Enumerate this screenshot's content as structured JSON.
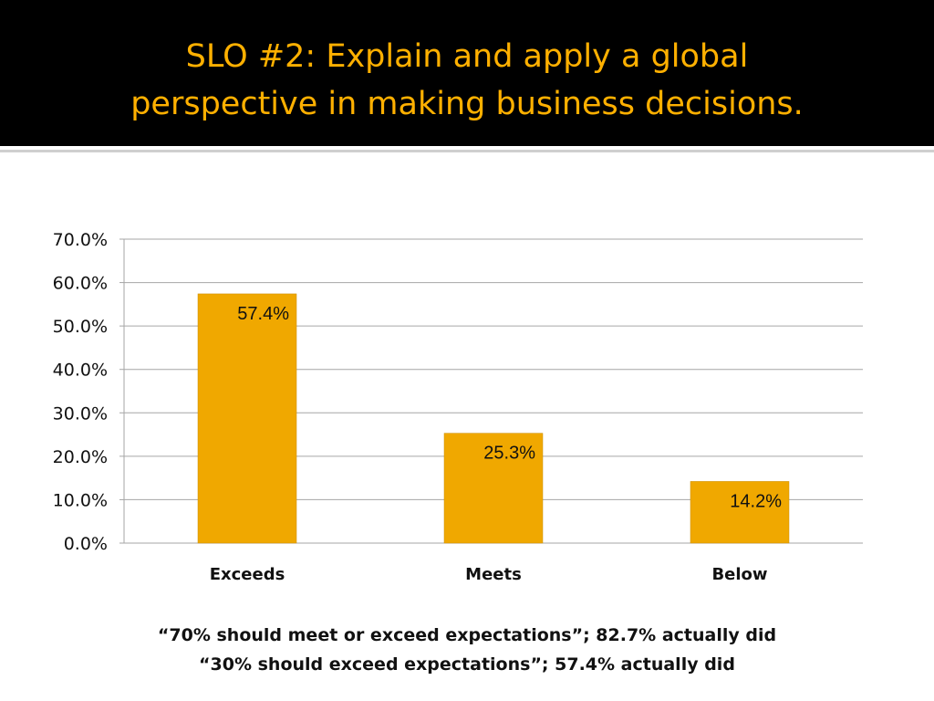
{
  "slide": {
    "title_line1": "SLO #2: Explain and apply a global",
    "title_line2": "perspective in making business decisions.",
    "note_line1": "“70% should meet or exceed expectations”; 82.7% actually did",
    "note_line2": "“30% should exceed expectations”; 57.4% actually did"
  },
  "colors": {
    "title_text": "#ffb000",
    "bar_fill": "#f0a800",
    "grid": "#a6a6a6"
  },
  "chart_data": {
    "type": "bar",
    "categories": [
      "Exceeds",
      "Meets",
      "Below"
    ],
    "values": [
      57.4,
      25.3,
      14.2
    ],
    "data_labels": [
      "57.4%",
      "25.3%",
      "14.2%"
    ],
    "ylim": [
      0,
      70
    ],
    "yticks": [
      0,
      10,
      20,
      30,
      40,
      50,
      60,
      70
    ],
    "ytick_labels": [
      "0.0%",
      "10.0%",
      "20.0%",
      "30.0%",
      "40.0%",
      "50.0%",
      "60.0%",
      "70.0%"
    ],
    "grid": true,
    "legend": false
  }
}
